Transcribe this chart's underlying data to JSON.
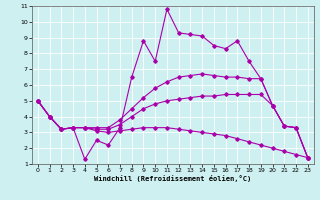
{
  "xlabel": "Windchill (Refroidissement éolien,°C)",
  "xlim": [
    -0.5,
    23.5
  ],
  "ylim": [
    1,
    11
  ],
  "xticks": [
    0,
    1,
    2,
    3,
    4,
    5,
    6,
    7,
    8,
    9,
    10,
    11,
    12,
    13,
    14,
    15,
    16,
    17,
    18,
    19,
    20,
    21,
    22,
    23
  ],
  "yticks": [
    1,
    2,
    3,
    4,
    5,
    6,
    7,
    8,
    9,
    10,
    11
  ],
  "bg_color": "#cef0f0",
  "line_color": "#aa00aa",
  "grid_color": "#ffffff",
  "lines": [
    {
      "x": [
        0,
        1,
        2,
        3,
        4,
        5,
        6,
        7,
        8,
        9,
        10,
        11,
        12,
        13,
        14,
        15,
        16,
        17,
        18,
        19,
        20,
        21,
        22,
        23
      ],
      "y": [
        5,
        4,
        3.2,
        3.3,
        1.3,
        2.5,
        2.2,
        3.3,
        6.5,
        8.8,
        7.5,
        10.8,
        9.3,
        9.2,
        9.1,
        8.5,
        8.3,
        8.8,
        7.5,
        6.4,
        4.7,
        3.4,
        3.3,
        1.4
      ]
    },
    {
      "x": [
        0,
        1,
        2,
        3,
        4,
        5,
        6,
        7,
        8,
        9,
        10,
        11,
        12,
        13,
        14,
        15,
        16,
        17,
        18,
        19,
        20,
        21,
        22,
        23
      ],
      "y": [
        5,
        4,
        3.2,
        3.3,
        3.3,
        3.3,
        3.3,
        3.8,
        4.5,
        5.2,
        5.8,
        6.2,
        6.5,
        6.6,
        6.7,
        6.6,
        6.5,
        6.5,
        6.4,
        6.4,
        4.7,
        3.4,
        3.3,
        1.4
      ]
    },
    {
      "x": [
        0,
        1,
        2,
        3,
        4,
        5,
        6,
        7,
        8,
        9,
        10,
        11,
        12,
        13,
        14,
        15,
        16,
        17,
        18,
        19,
        20,
        21,
        22,
        23
      ],
      "y": [
        5,
        4,
        3.2,
        3.3,
        3.3,
        3.2,
        3.2,
        3.5,
        4.0,
        4.5,
        4.8,
        5.0,
        5.1,
        5.2,
        5.3,
        5.3,
        5.4,
        5.4,
        5.4,
        5.4,
        4.7,
        3.4,
        3.3,
        1.4
      ]
    },
    {
      "x": [
        0,
        1,
        2,
        3,
        4,
        5,
        6,
        7,
        8,
        9,
        10,
        11,
        12,
        13,
        14,
        15,
        16,
        17,
        18,
        19,
        20,
        21,
        22,
        23
      ],
      "y": [
        5,
        4,
        3.2,
        3.3,
        3.3,
        3.1,
        3.0,
        3.1,
        3.2,
        3.3,
        3.3,
        3.3,
        3.2,
        3.1,
        3.0,
        2.9,
        2.8,
        2.6,
        2.4,
        2.2,
        2.0,
        1.8,
        1.6,
        1.4
      ]
    }
  ]
}
